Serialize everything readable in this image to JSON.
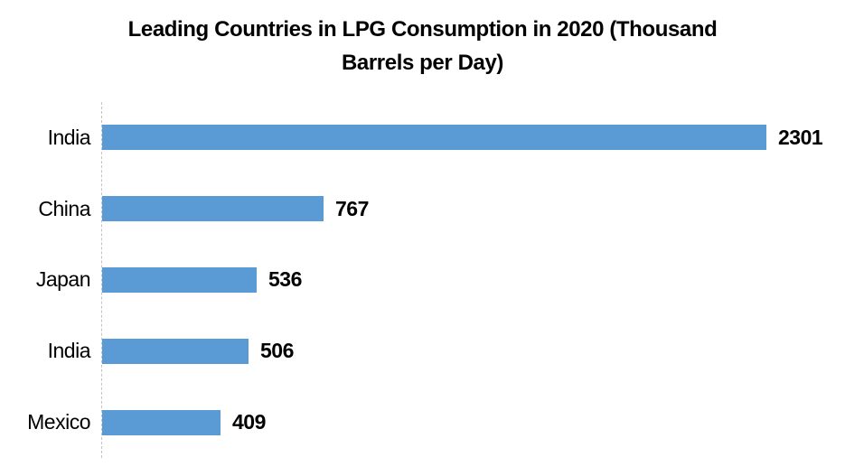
{
  "page": {
    "background": "#ffffff"
  },
  "chart_data": {
    "type": "bar",
    "orientation": "horizontal",
    "title": "Leading Countries in LPG Consumption in 2020 (Thousand Barrels per Day)",
    "title_lines": [
      "Leading Countries in LPG Consumption in 2020 (Thousand",
      "Barrels per Day)"
    ],
    "categories": [
      "India",
      "China",
      "Japan",
      "India",
      "Mexico"
    ],
    "values": [
      2301,
      767,
      536,
      506,
      409
    ],
    "data_labels": [
      "2301",
      "767",
      "536",
      "506",
      "409"
    ],
    "xlabel": "",
    "ylabel": "",
    "value_axis_visible": false,
    "gridlines": false,
    "legend_position": "none",
    "value_max": 2301,
    "colors": {
      "bar": "#5B9BD5",
      "text": "#000000",
      "axis_line": "#C3C3C3"
    }
  }
}
